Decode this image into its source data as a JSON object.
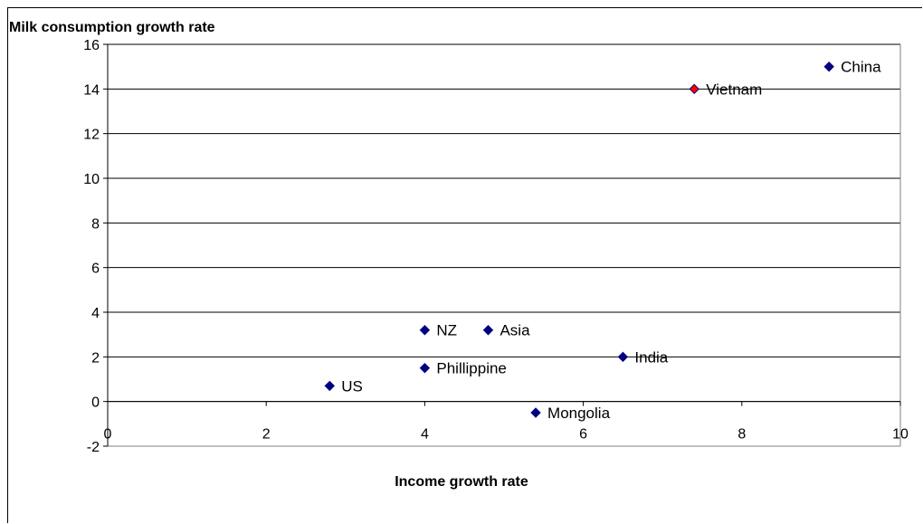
{
  "chart_data": {
    "type": "scatter",
    "title": "",
    "ylabel": "Milk consumption growth rate",
    "xlabel": "Income growth rate",
    "xlim": [
      0,
      10
    ],
    "ylim": [
      -2,
      16
    ],
    "xticks": [
      0,
      2,
      4,
      6,
      8,
      10
    ],
    "yticks": [
      -2,
      0,
      2,
      4,
      6,
      8,
      10,
      12,
      14,
      16
    ],
    "grid": "horizontal",
    "points": [
      {
        "label": "US",
        "x": 2.8,
        "y": 0.7,
        "color": "#000080"
      },
      {
        "label": "NZ",
        "x": 4.0,
        "y": 3.2,
        "color": "#000080"
      },
      {
        "label": "Phillippine",
        "x": 4.0,
        "y": 1.5,
        "color": "#000080"
      },
      {
        "label": "Asia",
        "x": 4.8,
        "y": 3.2,
        "color": "#000080"
      },
      {
        "label": "Mongolia",
        "x": 5.4,
        "y": -0.5,
        "color": "#000080"
      },
      {
        "label": "India",
        "x": 6.5,
        "y": 2.0,
        "color": "#000080"
      },
      {
        "label": "Vietnam",
        "x": 7.4,
        "y": 14.0,
        "color": "#ff0000"
      },
      {
        "label": "China",
        "x": 9.1,
        "y": 15.0,
        "color": "#000080"
      }
    ]
  }
}
